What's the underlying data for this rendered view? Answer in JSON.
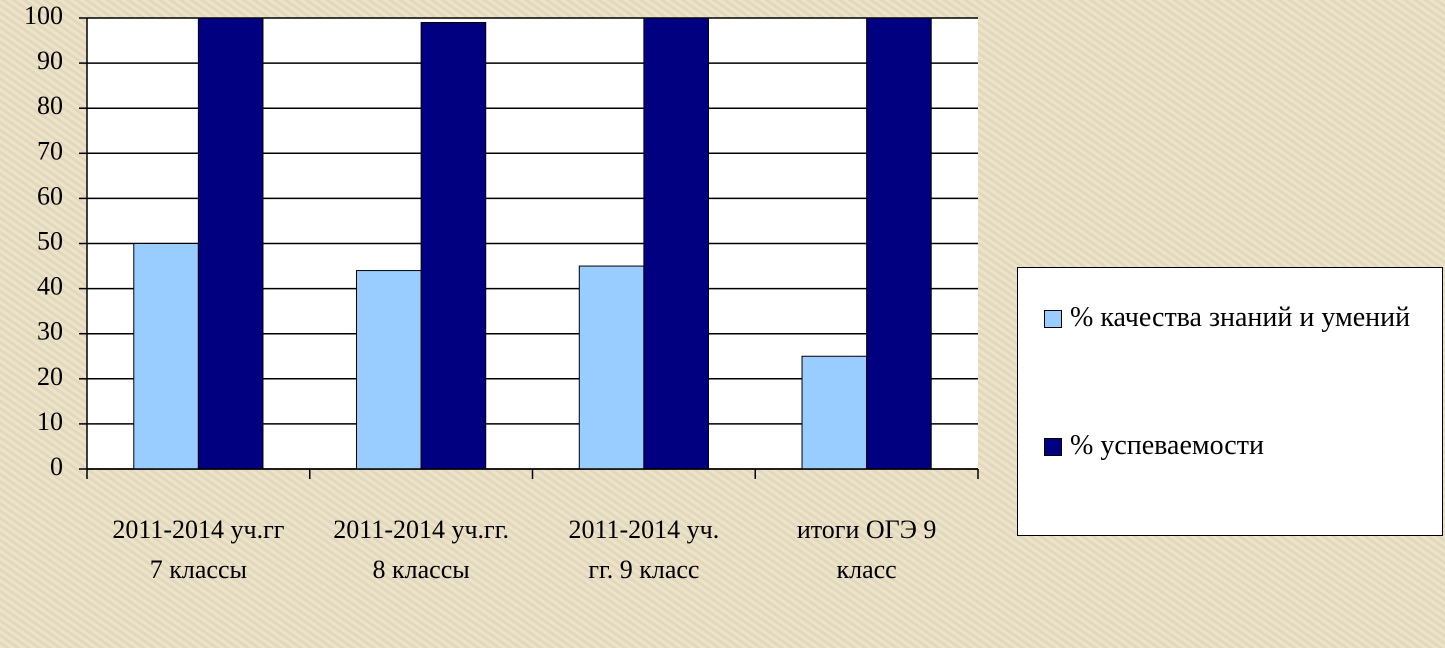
{
  "chart_data": {
    "type": "bar",
    "categories": [
      "2011-2014 уч.гг 7 классы",
      "2011-2014 уч.гг. 8 классы",
      "2011-2014 уч. гг. 9 класс",
      "итоги ОГЭ 9 класс"
    ],
    "series": [
      {
        "name": "% качества знаний и умений",
        "color": "#99ccff",
        "values": [
          50,
          44,
          45,
          25
        ]
      },
      {
        "name": "% успеваемости",
        "color": "#000080",
        "values": [
          100,
          99,
          100,
          100
        ]
      }
    ],
    "ylim": [
      0,
      100
    ],
    "yticks": [
      0,
      10,
      20,
      30,
      40,
      50,
      60,
      70,
      80,
      90,
      100
    ],
    "grid": true,
    "legend": "right"
  }
}
